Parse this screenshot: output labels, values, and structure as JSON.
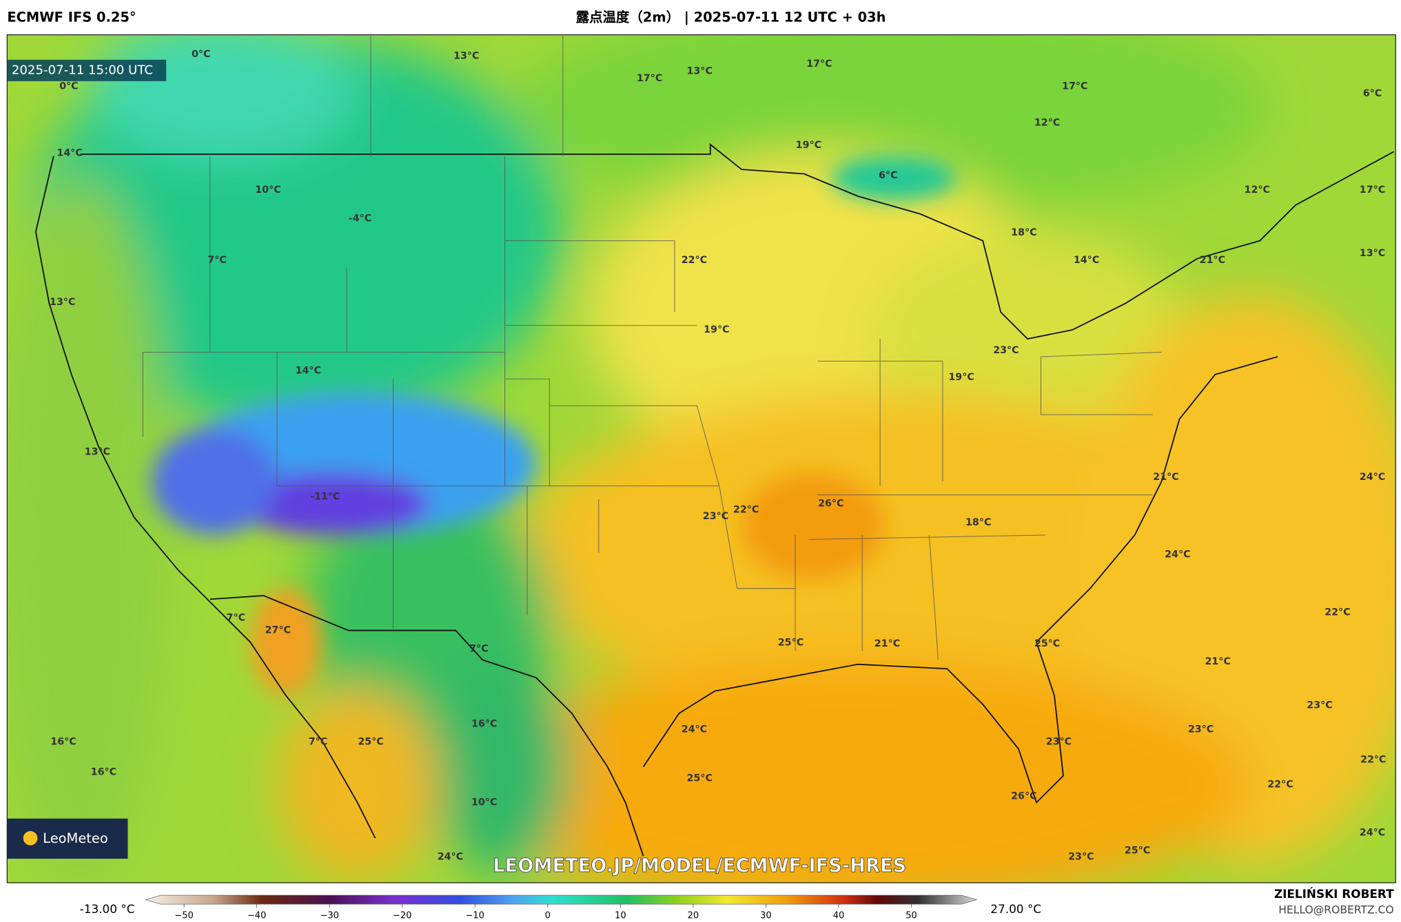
{
  "header": {
    "model": "ECMWF IFS 0.25°",
    "title": "露点温度（2m） | 2025-07-11 12 UTC + 03h"
  },
  "map": {
    "valid_time": "2025-07-11 15:00 UTC",
    "labels": [
      "0°C",
      "13°C",
      "17°C",
      "13°C",
      "17°C",
      "17°C",
      "6°C",
      "0°C",
      "12°C",
      "19°C",
      "14°C",
      "6°C",
      "12°C",
      "17°C",
      "10°C",
      "-4°C",
      "18°C",
      "22°C",
      "7°C",
      "14°C",
      "21°C",
      "13°C",
      "13°C",
      "19°C",
      "23°C",
      "14°C",
      "19°C",
      "13°C",
      "21°C",
      "24°C",
      "-11°C",
      "26°C",
      "22°C",
      "23°C",
      "18°C",
      "24°C",
      "22°C",
      "7°C",
      "27°C",
      "25°C",
      "21°C",
      "25°C",
      "7°C",
      "21°C",
      "23°C",
      "16°C",
      "24°C",
      "23°C",
      "16°C",
      "7°C",
      "25°C",
      "23°C",
      "22°C",
      "16°C",
      "25°C",
      "22°C",
      "26°C",
      "10°C",
      "24°C",
      "24°C",
      "23°C",
      "25°C"
    ],
    "logo": "LeoMeteo",
    "watermark": "LEOMETEO.JP/MODEL/ECMWF-IFS-HRES"
  },
  "colorbar": {
    "min_label": "-13.00 °C",
    "max_label": "27.00 °C",
    "ticks": [
      "−50",
      "−40",
      "−30",
      "−20",
      "−10",
      "0",
      "10",
      "20",
      "30",
      "40",
      "50"
    ]
  },
  "footer": {
    "author": "ZIELIŃSKI ROBERT",
    "email": "HELLO@ROBERTZ.CO"
  }
}
